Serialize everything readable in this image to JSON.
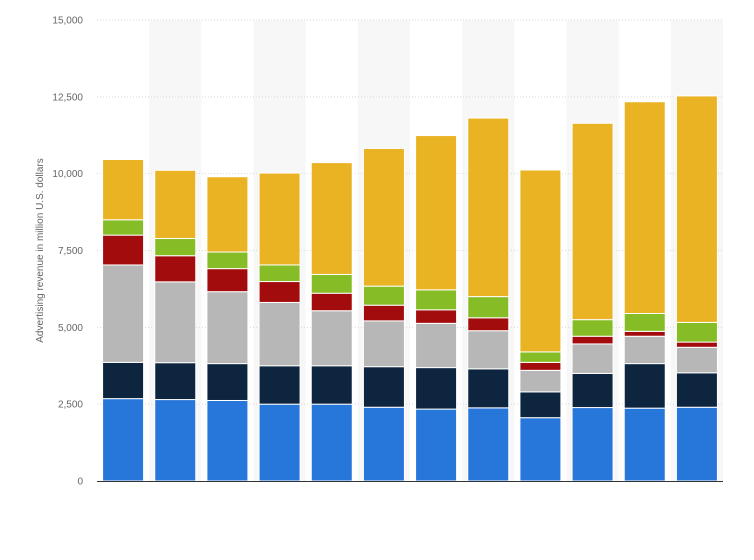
{
  "chart_data": {
    "type": "bar",
    "stacked": true,
    "title": "",
    "xlabel": "",
    "ylabel": "Advertising revenue in million U.S. dollars",
    "ylim": [
      0,
      15000
    ],
    "yticks": [
      0,
      2500,
      5000,
      7500,
      10000,
      12500,
      15000
    ],
    "ytick_labels": [
      "0",
      "2,500",
      "5,000",
      "7,500",
      "10,000",
      "12,500",
      "15,000"
    ],
    "grid": true,
    "legend": "none",
    "categories": [
      "",
      "",
      "",
      "",
      "",
      "",
      "",
      "",
      "",
      "",
      "",
      ""
    ],
    "series": [
      {
        "color": "#2776d9",
        "values": [
          2680,
          2650,
          2620,
          2500,
          2500,
          2400,
          2340,
          2380,
          2060,
          2390,
          2370,
          2400
        ]
      },
      {
        "color": "#0d253f",
        "values": [
          1180,
          1200,
          1200,
          1250,
          1250,
          1320,
          1350,
          1270,
          840,
          1110,
          1450,
          1120
        ]
      },
      {
        "color": "#b7b7b7",
        "values": [
          3170,
          2630,
          2340,
          2060,
          1790,
          1490,
          1440,
          1240,
          700,
          960,
          890,
          830
        ]
      },
      {
        "color": "#a30c0c",
        "values": [
          970,
          850,
          750,
          680,
          570,
          510,
          440,
          420,
          260,
          250,
          160,
          170
        ]
      },
      {
        "color": "#86bc25",
        "values": [
          500,
          560,
          540,
          540,
          610,
          620,
          650,
          690,
          340,
          540,
          580,
          640
        ]
      },
      {
        "color": "#eab323",
        "values": [
          1960,
          2220,
          2450,
          2990,
          3640,
          4480,
          5020,
          5810,
          5920,
          6390,
          6890,
          7370
        ]
      }
    ]
  }
}
